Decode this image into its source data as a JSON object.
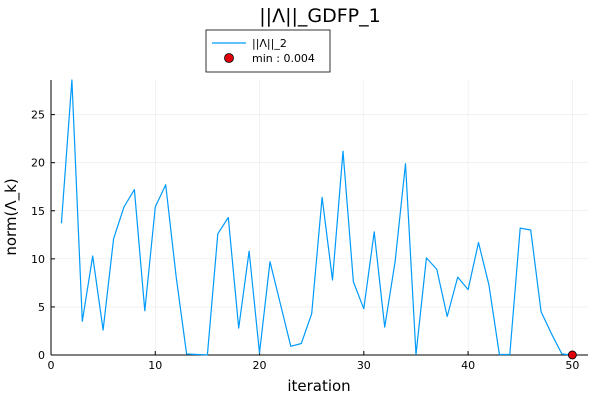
{
  "chart_data": {
    "type": "line",
    "title": "||Λ||_GDFP_1",
    "xlabel": "iteration",
    "ylabel": "norm(Λ_k)",
    "xlim": [
      0,
      51.5
    ],
    "ylim": [
      0,
      28.6
    ],
    "x_ticks": [
      0,
      10,
      20,
      30,
      40,
      50
    ],
    "y_ticks": [
      0,
      5,
      10,
      15,
      20,
      25
    ],
    "grid": true,
    "legend_position": "top-center-outside",
    "series": [
      {
        "name": "||Λ||_2",
        "kind": "line",
        "color": "#009AFA",
        "x": [
          1,
          2,
          3,
          4,
          5,
          6,
          7,
          8,
          9,
          10,
          11,
          12,
          13,
          14,
          15,
          16,
          17,
          18,
          19,
          20,
          21,
          22,
          23,
          24,
          25,
          26,
          27,
          28,
          29,
          30,
          31,
          32,
          33,
          34,
          35,
          36,
          37,
          38,
          39,
          40,
          41,
          42,
          43,
          44,
          45,
          46,
          47,
          48,
          49,
          50
        ],
        "y": [
          13.7,
          28.6,
          3.5,
          10.3,
          2.6,
          12.1,
          15.4,
          17.2,
          4.6,
          15.4,
          17.7,
          8.2,
          0.1,
          0.05,
          0.02,
          12.6,
          14.3,
          2.8,
          10.8,
          0.2,
          9.7,
          5.3,
          0.9,
          1.2,
          4.3,
          16.4,
          7.8,
          21.2,
          7.6,
          4.8,
          12.8,
          2.9,
          9.7,
          19.9,
          0.05,
          10.1,
          8.9,
          4.0,
          8.1,
          6.8,
          11.7,
          7.3,
          0.05,
          0.05,
          13.2,
          13.0,
          4.5,
          2.2,
          0.1,
          0.004
        ]
      },
      {
        "name": "min : 0.004",
        "kind": "scatter",
        "color": "#E0000B",
        "x": [
          50
        ],
        "y": [
          0.004
        ]
      }
    ]
  }
}
